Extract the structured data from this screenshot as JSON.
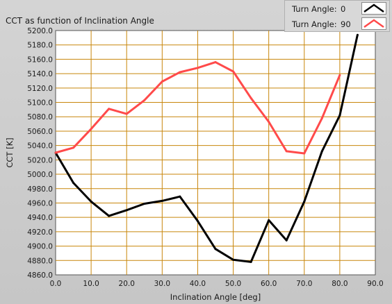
{
  "chart_data": {
    "type": "line",
    "title": "CCT as function of Inclination Angle",
    "xlabel": "Inclination Angle [deg]",
    "ylabel": "CCT [K]",
    "xlim": [
      0,
      90
    ],
    "ylim": [
      4860,
      5200
    ],
    "x_ticks": [
      "0.0",
      "10.0",
      "20.0",
      "30.0",
      "40.0",
      "50.0",
      "60.0",
      "70.0",
      "80.0",
      "90.0"
    ],
    "y_ticks": [
      "4860.0",
      "4880.0",
      "4900.0",
      "4920.0",
      "4940.0",
      "4960.0",
      "4980.0",
      "5000.0",
      "5020.0",
      "5040.0",
      "5060.0",
      "5080.0",
      "5100.0",
      "5120.0",
      "5140.0",
      "5160.0",
      "5180.0",
      "5200.0"
    ],
    "grid": true,
    "legend_position": "top-right",
    "series": [
      {
        "legend_label": "Turn Angle:",
        "legend_value": "0",
        "color": "#000000",
        "x": [
          0,
          5,
          10,
          15,
          20,
          25,
          30,
          35,
          40,
          45,
          50,
          55,
          60,
          65,
          70,
          75,
          80,
          85
        ],
        "y": [
          5030,
          4988,
          4962,
          4942,
          4950,
          4959,
          4963,
          4969,
          4935,
          4896,
          4881,
          4878,
          4936,
          4908,
          4962,
          5032,
          5082,
          5194
        ]
      },
      {
        "legend_label": "Turn Angle:",
        "legend_value": "90",
        "color": "#ff4a4a",
        "x": [
          0,
          5,
          10,
          15,
          20,
          25,
          30,
          35,
          40,
          45,
          50,
          55,
          60,
          65,
          70,
          75,
          80
        ],
        "y": [
          5030,
          5037,
          5063,
          5091,
          5084,
          5103,
          5129,
          5142,
          5148,
          5156,
          5143,
          5106,
          5073,
          5032,
          5029,
          5078,
          5138
        ]
      }
    ]
  },
  "colors": {
    "plot_bg": "#ffffff",
    "grid": "#c8860a",
    "panel_bg": "#d0d0d0"
  }
}
